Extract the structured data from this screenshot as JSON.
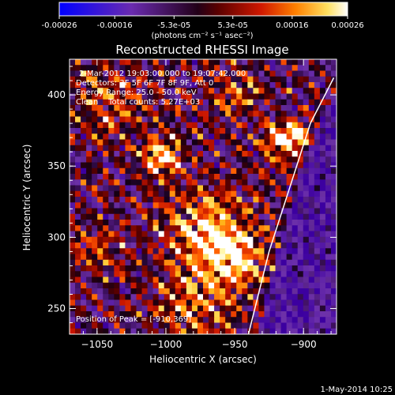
{
  "colorbar": {
    "tick_labels": [
      "-0.00026",
      "-0.00016",
      "-5.3e-05",
      "5.3e-05",
      "0.00016",
      "0.00026"
    ],
    "tick_values": [
      -0.00026,
      -0.00016,
      -5.3e-05,
      5.3e-05,
      0.00016,
      0.00026
    ],
    "range": [
      -0.00026,
      0.00026
    ],
    "unit_label": "(photons cm⁻² s⁻¹ asec⁻²)"
  },
  "footer": {
    "date": "1-May-2014 10:25"
  },
  "chart_data": {
    "type": "heatmap",
    "title": "Reconstructed RHESSI Image",
    "xlabel": "Heliocentric X (arcsec)",
    "ylabel": "Heliocentric Y (arcsec)",
    "xlim": [
      -1070,
      -876
    ],
    "ylim": [
      232,
      425
    ],
    "x_ticks": [
      -1050,
      -1000,
      -950,
      -900
    ],
    "y_ticks": [
      250,
      300,
      350,
      400
    ],
    "x_tick_labels": [
      "−1050",
      "−1000",
      "−950",
      "−900"
    ],
    "y_tick_labels": [
      "250",
      "300",
      "350",
      "400"
    ],
    "annotations": [
      "2-Mar-2012 19:03:00.000 to 19:07:42.000",
      "Detectors: 3F 5F 6F 7F 8F 9F, Att 0",
      "Energy Range: 25.0 - 50.0 keV",
      "Clean    Total counts: 5.27E+03"
    ],
    "peak_label": "Position of Peak = [-910,369]",
    "peak": [
      -910,
      369
    ],
    "limb": [
      [
        -940,
        232
      ],
      [
        -925,
        290
      ],
      [
        -910,
        335
      ],
      [
        -895,
        380
      ],
      [
        -878,
        412
      ]
    ],
    "sources": [
      {
        "x": -1003,
        "y": 357,
        "sigma": 10,
        "amp": 1.0
      },
      {
        "x": -972,
        "y": 305,
        "sigma": 22,
        "amp": 0.75
      },
      {
        "x": -950,
        "y": 285,
        "sigma": 16,
        "amp": 0.8
      },
      {
        "x": -918,
        "y": 368,
        "sigma": 9,
        "amp": 0.9
      },
      {
        "x": -905,
        "y": 372,
        "sigma": 7,
        "amp": 0.9
      },
      {
        "x": -1040,
        "y": 395,
        "sigma": 18,
        "amp": 0.55
      },
      {
        "x": -980,
        "y": 250,
        "sigma": 20,
        "amp": 0.55
      },
      {
        "x": -1050,
        "y": 290,
        "sigma": 14,
        "amp": 0.45
      },
      {
        "x": -950,
        "y": 400,
        "sigma": 12,
        "amp": 0.55
      }
    ]
  }
}
